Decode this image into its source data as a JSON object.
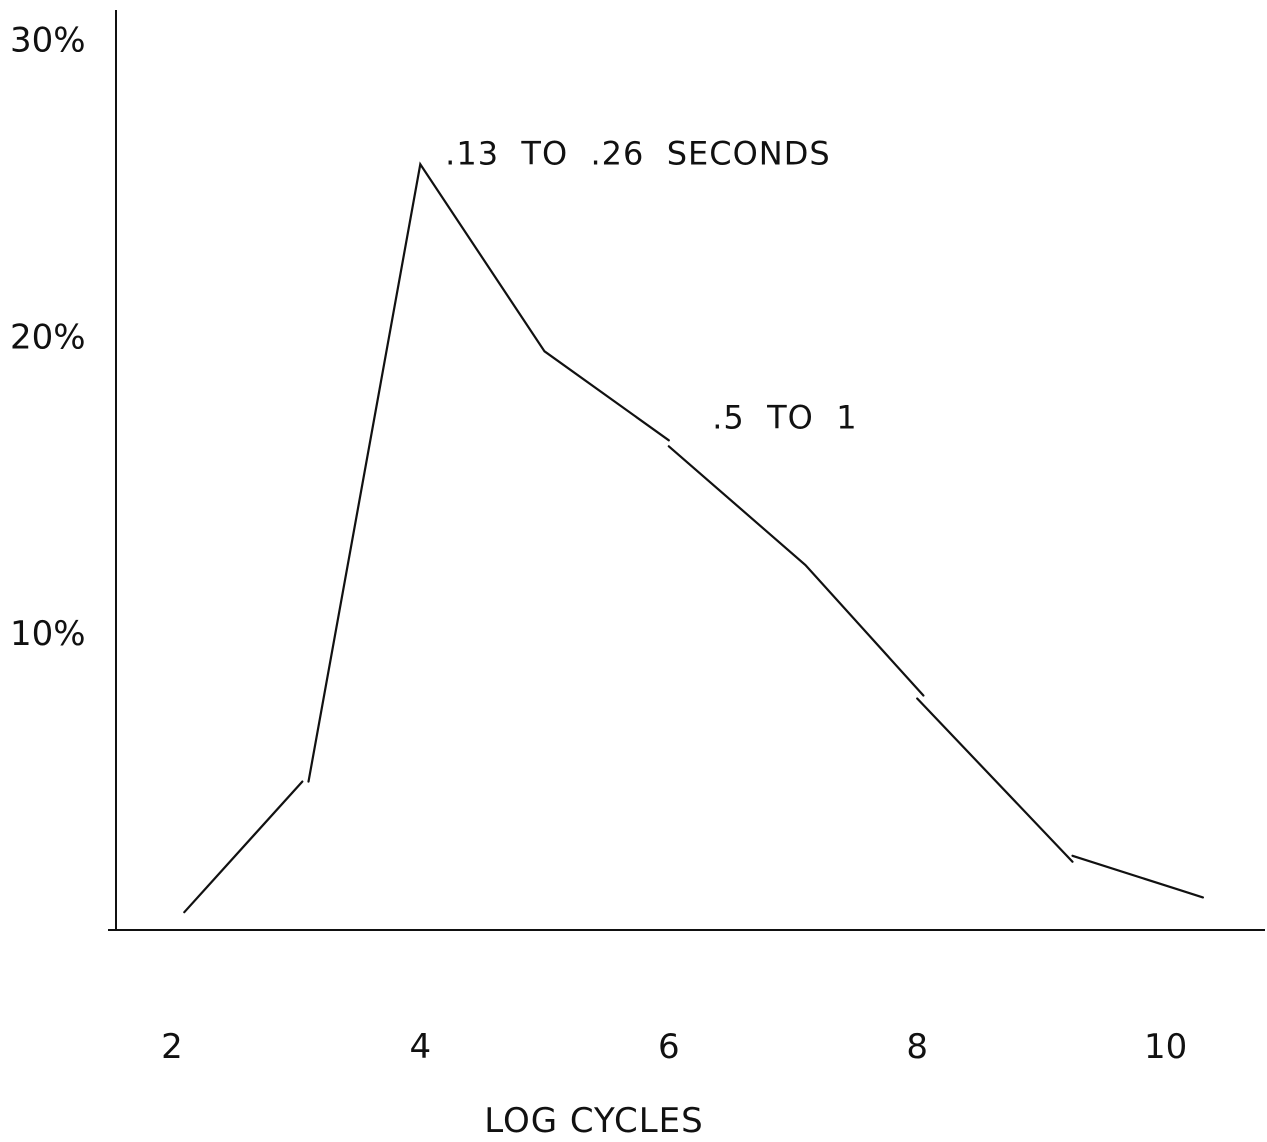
{
  "chart_data": {
    "type": "line",
    "title": "",
    "xlabel": "LOG CYCLES",
    "ylabel": "",
    "xlim": [
      1.55,
      10.8
    ],
    "ylim": [
      0,
      31
    ],
    "grid": false,
    "x_ticks": [
      {
        "value": 2,
        "label": "2"
      },
      {
        "value": 4,
        "label": "4"
      },
      {
        "value": 6,
        "label": "6"
      },
      {
        "value": 8,
        "label": "8"
      },
      {
        "value": 10,
        "label": "10"
      }
    ],
    "y_ticks": [
      {
        "value": 10,
        "label": "10%"
      },
      {
        "value": 20,
        "label": "20%"
      },
      {
        "value": 30,
        "label": "30%"
      }
    ],
    "series": [
      {
        "name": "",
        "segments": [
          [
            {
              "x": 2.1,
              "y": 0.6
            },
            {
              "x": 3.05,
              "y": 5.0
            }
          ],
          [
            {
              "x": 3.1,
              "y": 5.0
            },
            {
              "x": 4.0,
              "y": 25.8
            },
            {
              "x": 5.0,
              "y": 19.5
            },
            {
              "x": 6.0,
              "y": 16.5
            }
          ],
          [
            {
              "x": 6.0,
              "y": 16.3
            },
            {
              "x": 7.1,
              "y": 12.3
            },
            {
              "x": 8.05,
              "y": 7.9
            }
          ],
          [
            {
              "x": 8.0,
              "y": 7.8
            },
            {
              "x": 9.25,
              "y": 2.3
            }
          ],
          [
            {
              "x": 9.25,
              "y": 2.5
            },
            {
              "x": 10.3,
              "y": 1.1
            }
          ]
        ]
      }
    ],
    "annotations": [
      {
        "text": ".13  TO  .26  SECONDS",
        "x": 4.2,
        "y": 25.8
      },
      {
        "text": ".5  TO  1",
        "x": 6.35,
        "y": 16.9
      }
    ]
  }
}
